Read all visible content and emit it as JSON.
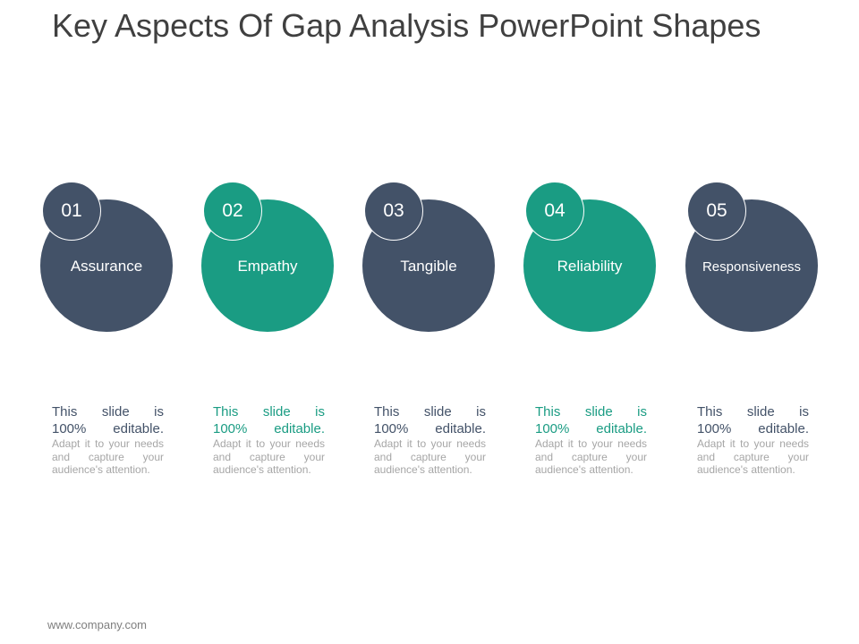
{
  "title": "Key Aspects Of Gap Analysis PowerPoint Shapes",
  "colors": {
    "dark": "#435268",
    "teal": "#1a9c83",
    "title": "#404040"
  },
  "items": [
    {
      "number": "01",
      "label": "Assurance",
      "desc_line1": "This slide is",
      "desc_line2": "100% editable.",
      "desc_sub": "Adapt it to your needs and capture your audience's attention.",
      "color": "#435268",
      "text_color": "#435268"
    },
    {
      "number": "02",
      "label": "Empathy",
      "desc_line1": "This slide is",
      "desc_line2": "100% editable.",
      "desc_sub": "Adapt it to your needs and capture your audience's attention.",
      "color": "#1a9c83",
      "text_color": "#1a9c83"
    },
    {
      "number": "03",
      "label": "Tangible",
      "desc_line1": "This slide is",
      "desc_line2": "100% editable.",
      "desc_sub": "Adapt it to your needs and capture your audience's attention.",
      "color": "#435268",
      "text_color": "#435268"
    },
    {
      "number": "04",
      "label": "Reliability",
      "desc_line1": "This slide is",
      "desc_line2": "100% editable.",
      "desc_sub": "Adapt it to your needs and capture your audience's attention.",
      "color": "#1a9c83",
      "text_color": "#1a9c83"
    },
    {
      "number": "05",
      "label": "Responsiveness",
      "desc_line1": "This slide is",
      "desc_line2": "100% editable.",
      "desc_sub": "Adapt it to your needs and capture your audience's attention.",
      "color": "#435268",
      "text_color": "#435268"
    }
  ],
  "footer": "www.company.com"
}
